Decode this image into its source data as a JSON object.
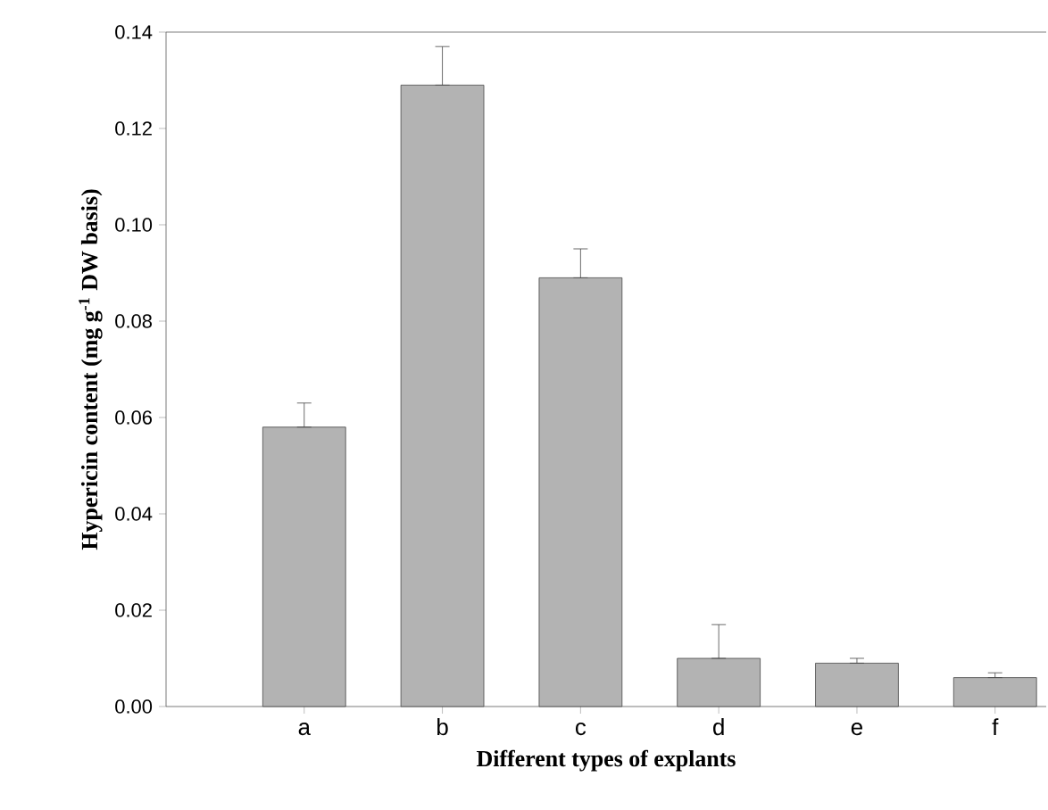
{
  "chart_data": {
    "type": "bar",
    "xlabel": "Different types of explants",
    "ylabel": "Hypericin content (mg g$^{-1}$ DW basis)",
    "categories": [
      "a",
      "b",
      "c",
      "d",
      "e",
      "f"
    ],
    "values": [
      0.058,
      0.129,
      0.089,
      0.01,
      0.009,
      0.006
    ],
    "errors": [
      [
        0.058,
        0.063
      ],
      [
        0.129,
        0.137
      ],
      [
        0.089,
        0.095
      ],
      [
        0.01,
        0.017
      ],
      [
        0.009,
        0.01
      ],
      [
        0.006,
        0.007
      ]
    ],
    "color": "#b3b3b3",
    "ylim": [
      0,
      0.14
    ],
    "yticks": [
      {
        "value": 0,
        "label": "0.00"
      },
      {
        "value": 0.02,
        "label": "0.02"
      },
      {
        "value": 0.04,
        "label": "0.04"
      },
      {
        "value": 0.06,
        "label": "0.06"
      },
      {
        "value": 0.08,
        "label": "0.08"
      },
      {
        "value": 0.1,
        "label": "0.10"
      },
      {
        "value": 0.12,
        "label": "0.12"
      },
      {
        "value": 0.14,
        "label": "0.14"
      }
    ],
    "grid": false
  }
}
